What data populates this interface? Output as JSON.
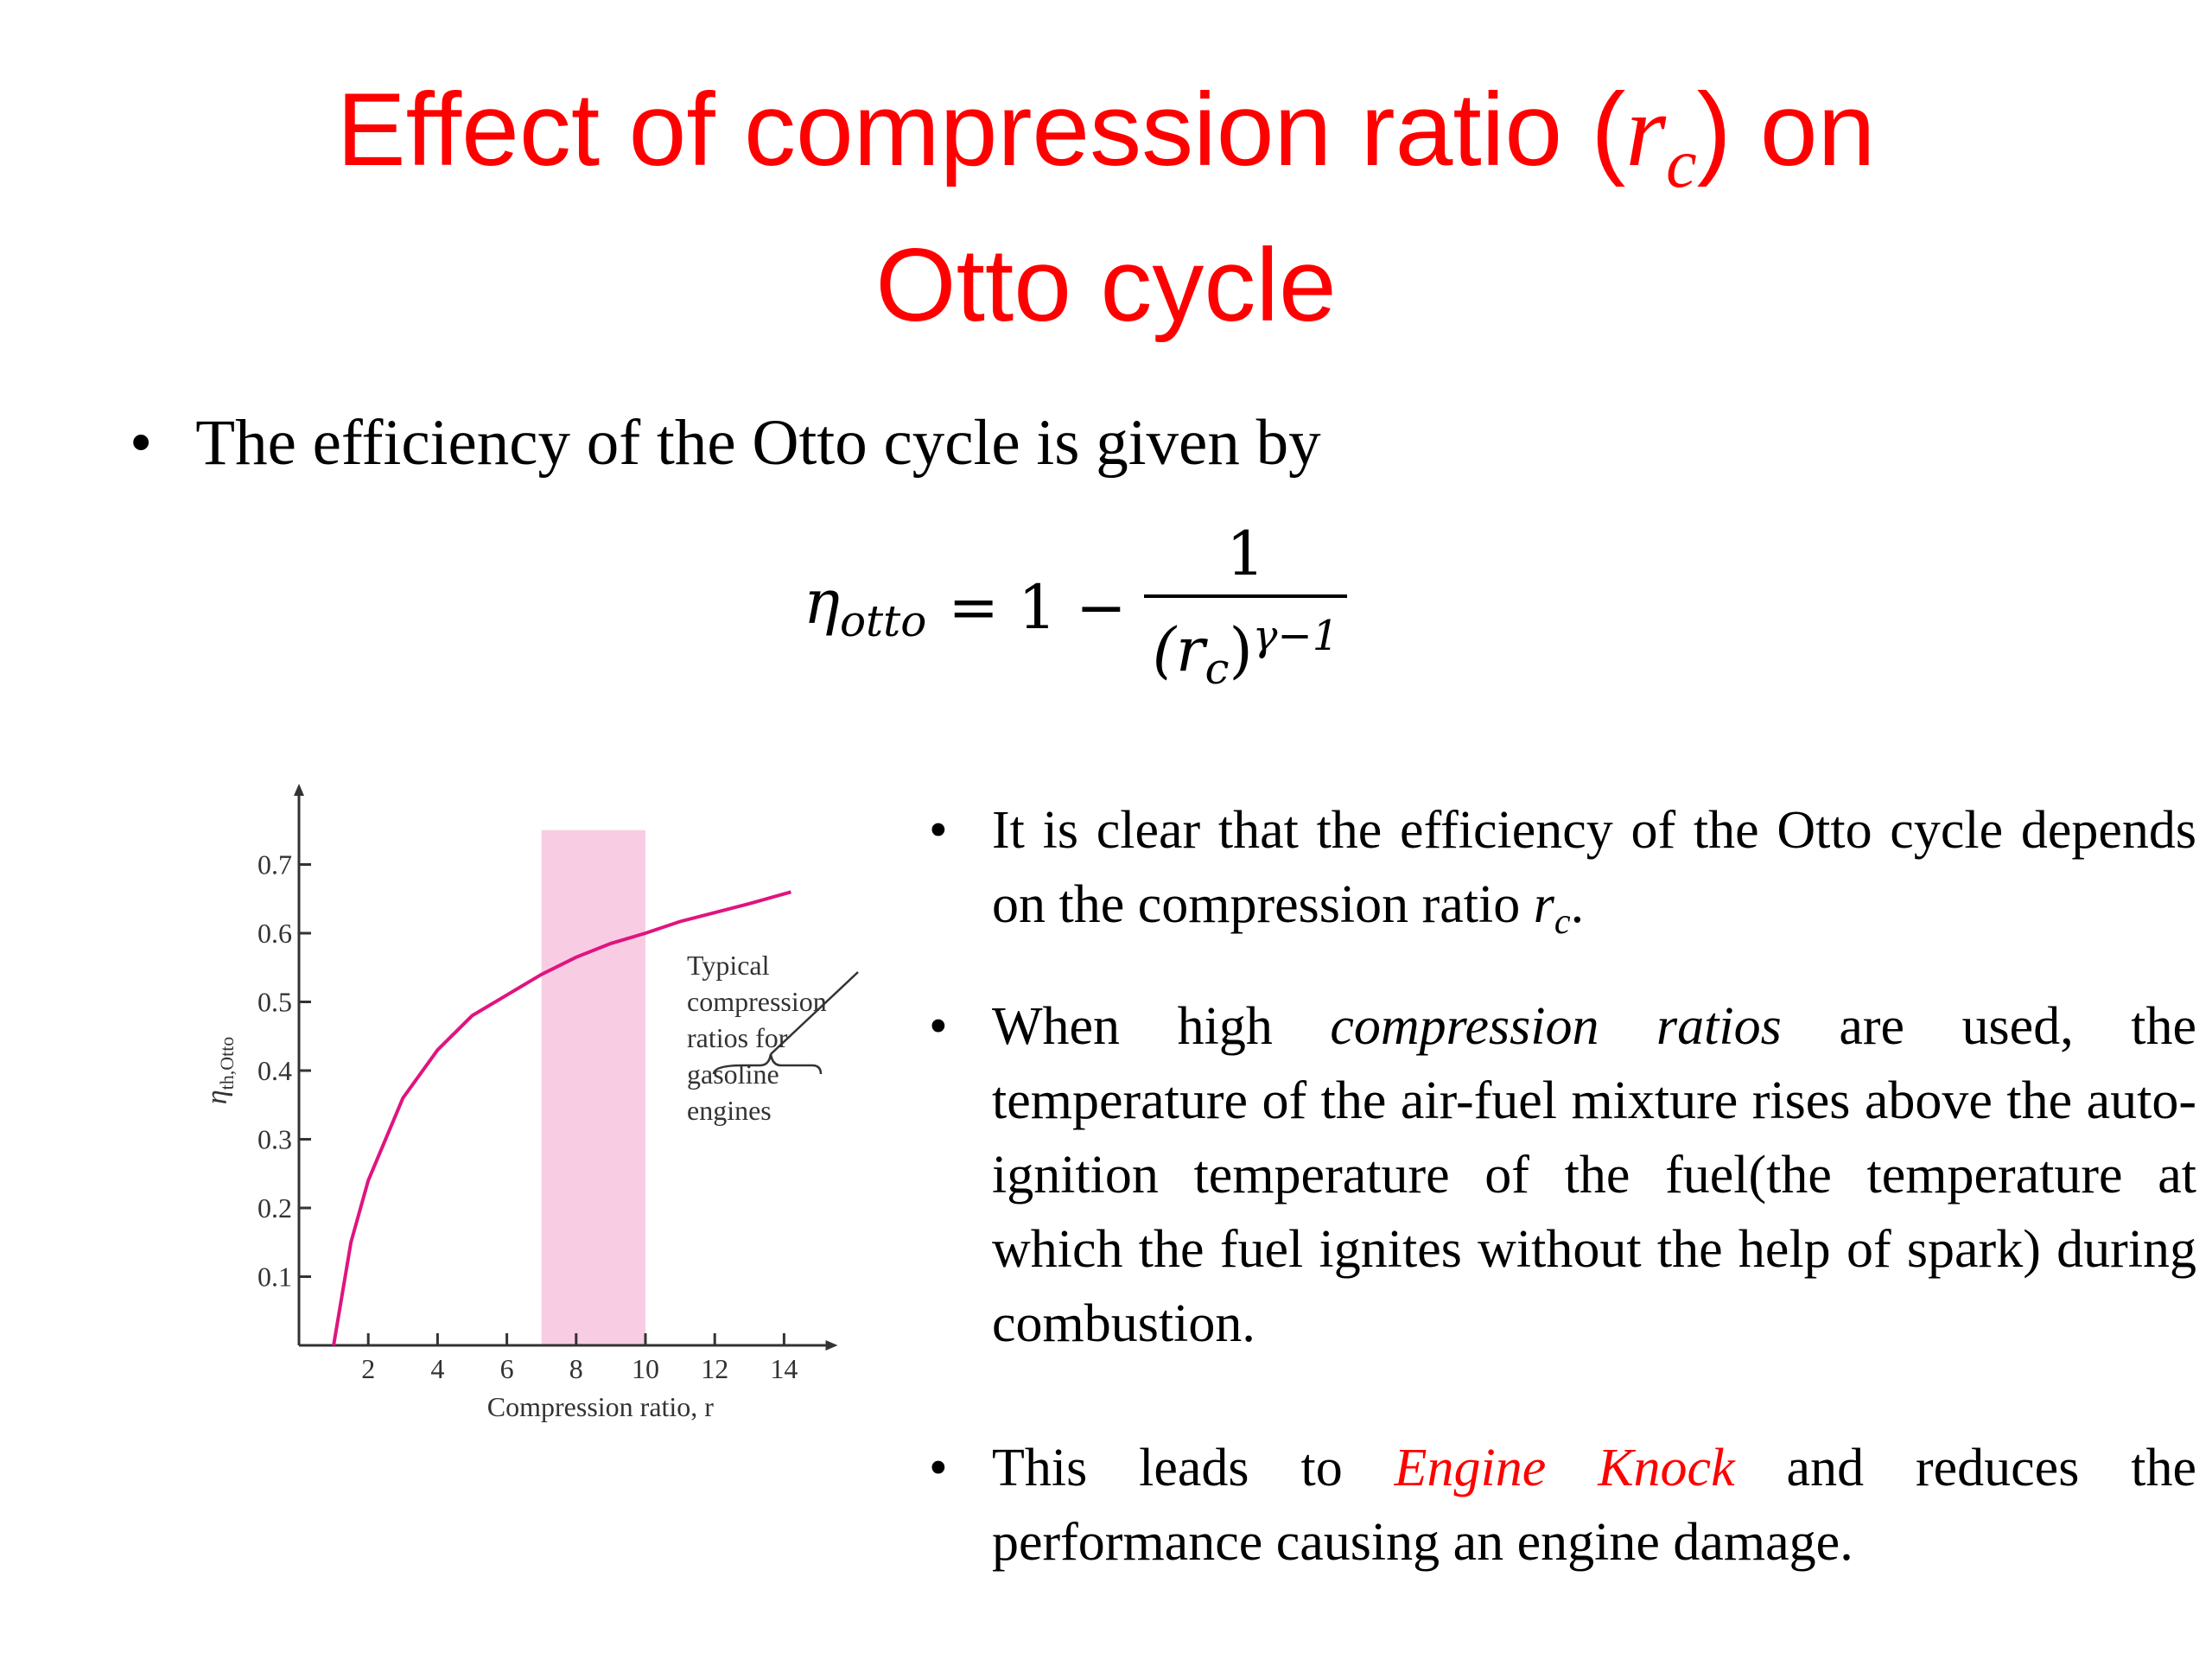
{
  "title": {
    "before": "Effect of compression ratio (",
    "var": "r",
    "sub": "c",
    "after": ") on",
    "line2": "Otto cycle"
  },
  "intro": "The efficiency of the Otto cycle is given by",
  "formula": {
    "lhs": "η",
    "lhs_sub": "otto",
    "middle": "= 1 −",
    "numerator": "1",
    "den_open": "(r",
    "den_sub": "c",
    "den_close": ")",
    "den_exp": "γ−1"
  },
  "bullets": [
    {
      "text": "It is clear that the efficiency of the Otto cycle depends on the compression ratio ",
      "var": "r",
      "sub": "c",
      "end": "."
    },
    {
      "before": "When high ",
      "emph": "compression ratios",
      "after": " are used, the temperature of the air-fuel mixture rises above the auto-ignition temperature of the fuel(the temperature at which the fuel ignites without the help of spark) during combustion."
    },
    {
      "before": "This leads to ",
      "emph": "Engine Knock",
      "after": " and reduces the performance causing an engine damage."
    }
  ],
  "chart_data": {
    "type": "line",
    "x_label": "Compression ratio, r",
    "y_label": {
      "symbol": "η",
      "subscript": "th,Otto"
    },
    "x": [
      1,
      1.5,
      2,
      3,
      4,
      5,
      6,
      7,
      8,
      9,
      10,
      11,
      12,
      13,
      14.2
    ],
    "series": [
      {
        "color": "#e0147f",
        "values": [
          0,
          0.15,
          0.24,
          0.36,
          0.43,
          0.48,
          0.51,
          0.54,
          0.565,
          0.585,
          0.6,
          0.617,
          0.63,
          0.643,
          0.66
        ]
      }
    ],
    "highlight": {
      "x": [
        7,
        10
      ],
      "top": 0.75,
      "color": "#f8cde4"
    },
    "annotation": [
      "Typical",
      "compression",
      "ratios for",
      "gasoline",
      "engines"
    ],
    "xlim": [
      0,
      15.2
    ],
    "ylim": [
      0,
      0.8
    ],
    "xticks": [
      2,
      4,
      6,
      8,
      10,
      12,
      14
    ],
    "yticks": [
      0.1,
      0.2,
      0.3,
      0.4,
      0.5,
      0.6,
      0.7
    ]
  }
}
